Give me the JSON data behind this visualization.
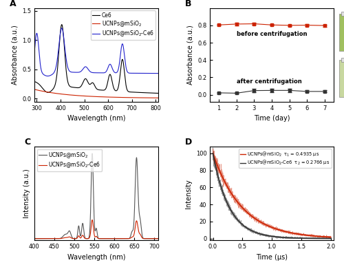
{
  "panel_A": {
    "title": "A",
    "xlabel": "Wavelength (nm)",
    "ylabel": "Absorbance (a.u.)",
    "xlim": [
      290,
      810
    ],
    "ylim": [
      -0.05,
      1.55
    ],
    "yticks": [
      0.0,
      0.5,
      1.0,
      1.5
    ],
    "xticks": [
      300,
      400,
      500,
      600,
      700,
      800
    ],
    "legend": [
      "Ce6",
      "UCNPs@mSiO$_2$",
      "UCNPs@mSiO$_2$-Ce6"
    ],
    "colors": [
      "black",
      "#cc2200",
      "#2222cc"
    ]
  },
  "panel_B": {
    "title": "B",
    "xlabel": "Time (day)",
    "ylabel": "Absorbance (a.u.)",
    "xlim": [
      0.5,
      7.5
    ],
    "ylim": [
      -0.08,
      1.0
    ],
    "yticks": [
      0.0,
      0.2,
      0.4,
      0.6,
      0.8
    ],
    "xticks": [
      1,
      2,
      3,
      4,
      5,
      6,
      7
    ],
    "before_label": "before centrifugation",
    "after_label": "after centrifugation",
    "before_y": [
      0.805,
      0.815,
      0.818,
      0.805,
      0.8,
      0.802,
      0.798
    ],
    "before_err": [
      0.01,
      0.015,
      0.012,
      0.01,
      0.01,
      0.01,
      0.012
    ],
    "after_y": [
      0.022,
      0.018,
      0.048,
      0.05,
      0.05,
      0.038,
      0.038
    ],
    "after_err": [
      0.01,
      0.008,
      0.018,
      0.02,
      0.018,
      0.012,
      0.012
    ],
    "colors": [
      "#cc2200",
      "#333333"
    ]
  },
  "panel_C": {
    "title": "C",
    "xlabel": "Wavelength (nm)",
    "ylabel": "Intensity (a.u.)",
    "xlim": [
      400,
      710
    ],
    "ylim": [
      -2,
      108
    ],
    "xticks": [
      400,
      450,
      500,
      550,
      600,
      650,
      700
    ],
    "legend": [
      "UCNPs@mSiO$_2$",
      "UCNPs@mSiO$_2$-Ce6"
    ],
    "colors": [
      "#555555",
      "#cc2200"
    ]
  },
  "panel_D": {
    "title": "D",
    "xlabel": "Time (μs)",
    "ylabel": "Intensity",
    "xlim": [
      -0.05,
      2.05
    ],
    "ylim": [
      -2,
      108
    ],
    "xticks": [
      0.0,
      0.5,
      1.0,
      1.5,
      2.0
    ],
    "yticks": [
      0,
      20,
      40,
      60,
      80,
      100
    ],
    "legend": [
      "UCNPs@mSiO$_2$  τ$_1$ = 0.4935 μs",
      "UCNPs@mSiO$_2$-Ce6  τ$_2$ = 0.2766 μs"
    ],
    "colors": [
      "#cc2200",
      "#333333"
    ],
    "tau1": 0.4935,
    "tau2": 0.2766
  },
  "background_color": "white",
  "figure_label_fontsize": 9,
  "axis_label_fontsize": 7,
  "tick_fontsize": 6,
  "legend_fontsize": 5.5
}
